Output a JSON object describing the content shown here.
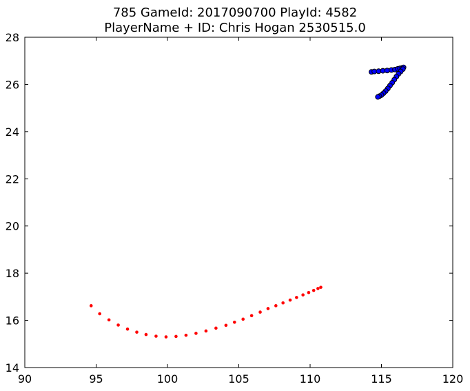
{
  "chart_data": {
    "type": "scatter",
    "title": "785 GameId: 2017090700 PlayId: 4582",
    "subtitle": "PlayerName + ID: Chris Hogan 2530515.0",
    "xlabel": "",
    "ylabel": "",
    "xlim": [
      90,
      120
    ],
    "ylim": [
      14,
      28
    ],
    "xticks": [
      90,
      95,
      100,
      105,
      110,
      115,
      120
    ],
    "yticks": [
      14,
      16,
      18,
      20,
      22,
      24,
      26,
      28
    ],
    "grid": false,
    "series": [
      {
        "color": "#ff0000",
        "marker": "small-dot",
        "x": [
          94.65,
          95.25,
          95.9,
          96.55,
          97.2,
          97.85,
          98.5,
          99.2,
          99.9,
          100.6,
          101.3,
          102.0,
          102.7,
          103.4,
          104.1,
          104.7,
          105.3,
          105.9,
          106.5,
          107.05,
          107.6,
          108.1,
          108.6,
          109.05,
          109.5,
          109.9,
          110.25,
          110.55,
          110.75
        ],
        "y": [
          16.62,
          16.28,
          16.02,
          15.8,
          15.63,
          15.5,
          15.4,
          15.33,
          15.3,
          15.32,
          15.37,
          15.45,
          15.55,
          15.67,
          15.79,
          15.92,
          16.05,
          16.2,
          16.35,
          16.5,
          16.62,
          16.74,
          16.86,
          16.97,
          17.08,
          17.18,
          17.27,
          17.35,
          17.4
        ]
      },
      {
        "color": "#0000ff",
        "marker": "circle",
        "x": [
          114.3,
          114.5,
          114.8,
          115.1,
          115.4,
          115.7,
          115.95,
          116.15,
          116.3,
          116.45,
          116.55,
          116.5,
          116.35,
          116.2,
          116.05,
          115.9,
          115.75,
          115.6,
          115.45,
          115.3,
          115.15,
          115.0,
          114.85,
          114.75
        ],
        "y": [
          26.53,
          26.55,
          26.56,
          26.58,
          26.59,
          26.61,
          26.63,
          26.66,
          26.68,
          26.7,
          26.72,
          26.65,
          26.55,
          26.45,
          26.33,
          26.2,
          26.07,
          25.95,
          25.83,
          25.72,
          25.63,
          25.55,
          25.5,
          25.47
        ]
      }
    ]
  }
}
